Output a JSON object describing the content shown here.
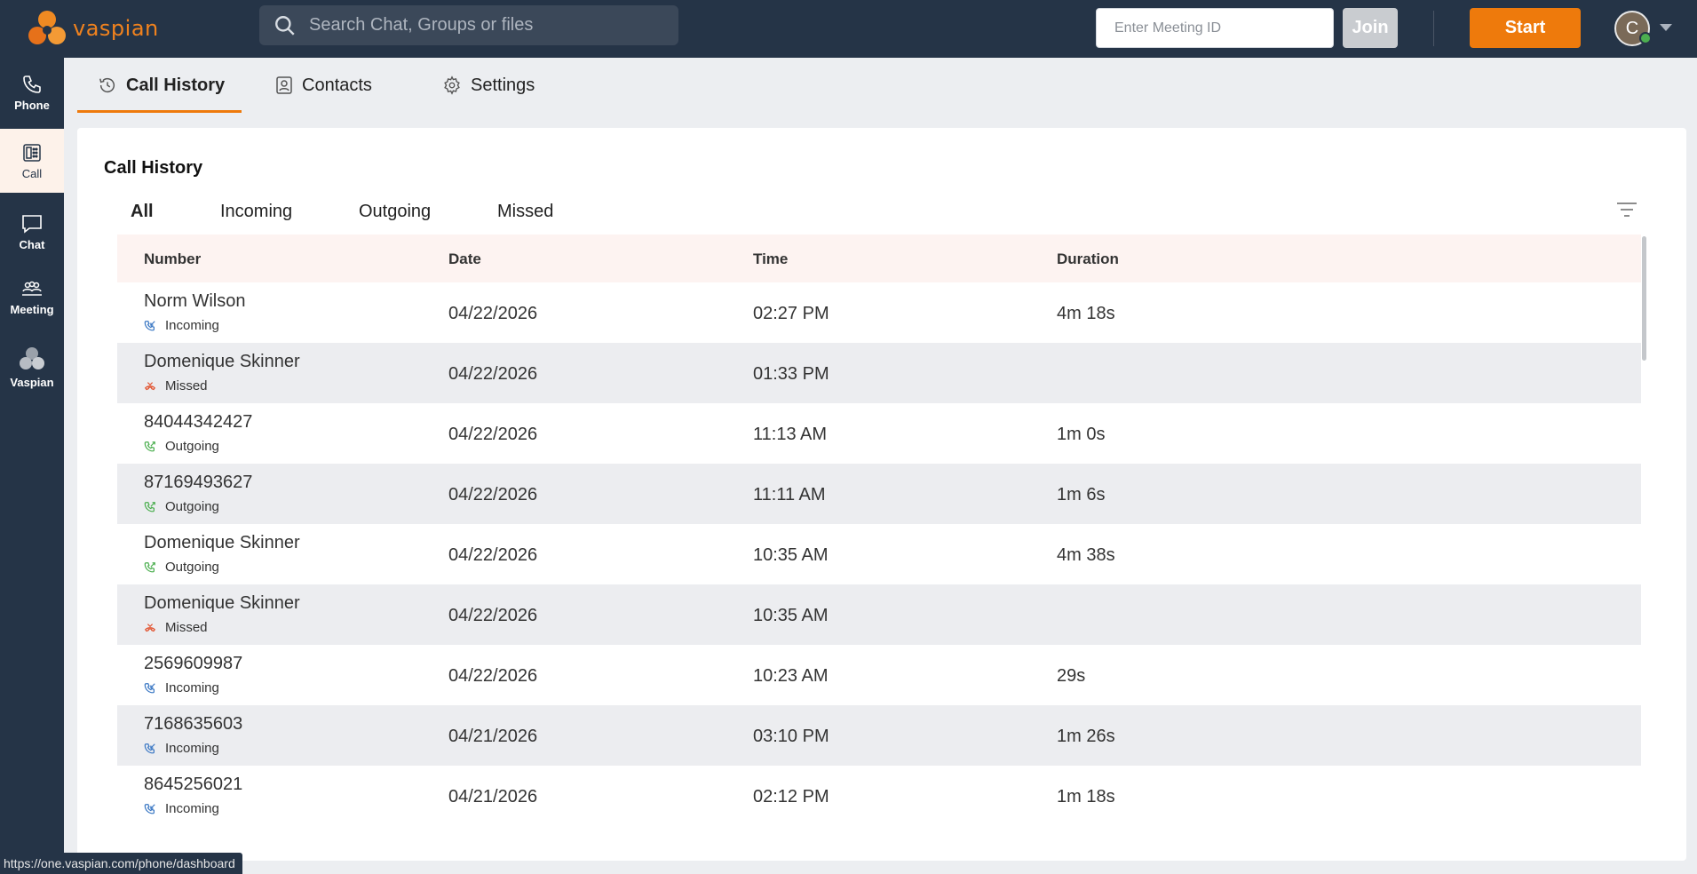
{
  "brand": {
    "name": "vaspian",
    "color": "#ee7a0c"
  },
  "header": {
    "search_placeholder": "Search Chat, Groups or files",
    "meeting_placeholder": "Enter Meeting ID",
    "join_label": "Join",
    "start_label": "Start",
    "avatar_initial": "C",
    "avatar_status": "online"
  },
  "sidebar": {
    "items": [
      {
        "label": "Phone",
        "icon": "phone-icon"
      },
      {
        "label": "Call",
        "icon": "dialpad-icon",
        "active": true
      },
      {
        "label": "Chat",
        "icon": "chat-icon"
      },
      {
        "label": "Meeting",
        "icon": "meeting-icon"
      },
      {
        "label": "Vaspian",
        "icon": "vaspian-logo-icon"
      }
    ]
  },
  "tabs": [
    {
      "label": "Call History",
      "icon": "history-icon",
      "active": true
    },
    {
      "label": "Contacts",
      "icon": "contacts-icon"
    },
    {
      "label": "Settings",
      "icon": "gear-icon"
    }
  ],
  "panel": {
    "title": "Call History",
    "filters": [
      {
        "label": "All",
        "active": true
      },
      {
        "label": "Incoming"
      },
      {
        "label": "Outgoing"
      },
      {
        "label": "Missed"
      }
    ],
    "columns": [
      "Number",
      "Date",
      "Time",
      "Duration"
    ],
    "rows": [
      {
        "name": "Norm Wilson",
        "type": "Incoming",
        "date": "04/22/2026",
        "time": "02:27 PM",
        "duration": "4m 18s"
      },
      {
        "name": "Domenique Skinner",
        "type": "Missed",
        "date": "04/22/2026",
        "time": "01:33 PM",
        "duration": ""
      },
      {
        "name": "84044342427",
        "type": "Outgoing",
        "date": "04/22/2026",
        "time": "11:13 AM",
        "duration": "1m 0s"
      },
      {
        "name": "87169493627",
        "type": "Outgoing",
        "date": "04/22/2026",
        "time": "11:11 AM",
        "duration": "1m 6s"
      },
      {
        "name": "Domenique Skinner",
        "type": "Outgoing",
        "date": "04/22/2026",
        "time": "10:35 AM",
        "duration": "4m 38s"
      },
      {
        "name": "Domenique Skinner",
        "type": "Missed",
        "date": "04/22/2026",
        "time": "10:35 AM",
        "duration": ""
      },
      {
        "name": "2569609987",
        "type": "Incoming",
        "date": "04/22/2026",
        "time": "10:23 AM",
        "duration": "29s"
      },
      {
        "name": "7168635603",
        "type": "Incoming",
        "date": "04/21/2026",
        "time": "03:10 PM",
        "duration": "1m 26s"
      },
      {
        "name": "8645256021",
        "type": "Incoming",
        "date": "04/21/2026",
        "time": "02:12 PM",
        "duration": "1m 18s"
      }
    ]
  },
  "type_colors": {
    "Incoming": "#3b78c4",
    "Outgoing": "#4caf50",
    "Missed": "#e2522e"
  },
  "status_bar": {
    "url": "https://one.vaspian.com/phone/dashboard"
  }
}
